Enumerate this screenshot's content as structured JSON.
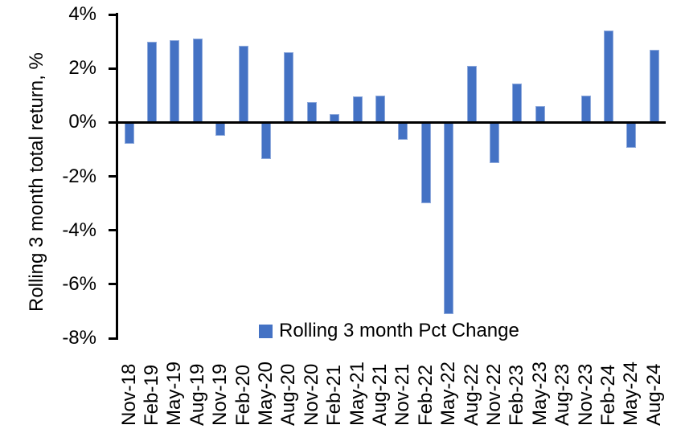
{
  "chart_data": {
    "type": "bar",
    "title": "",
    "xlabel": "",
    "ylabel": "Rolling 3 month total return, %",
    "categories": [
      "Nov-18",
      "Feb-19",
      "May-19",
      "Aug-19",
      "Nov-19",
      "Feb-20",
      "May-20",
      "Aug-20",
      "Nov-20",
      "Feb-21",
      "May-21",
      "Aug-21",
      "Nov-21",
      "Feb-22",
      "May-22",
      "Aug-22",
      "Nov-22",
      "Feb-23",
      "May-23",
      "Aug-23",
      "Nov-23",
      "Feb-24",
      "May-24",
      "Aug-24"
    ],
    "series": [
      {
        "name": "Rolling 3 month Pct Change",
        "values": [
          -0.8,
          3.0,
          3.05,
          3.1,
          -0.5,
          2.85,
          -1.35,
          2.6,
          0.75,
          0.3,
          0.95,
          1.0,
          -0.65,
          -3.0,
          -7.1,
          2.1,
          -1.5,
          1.45,
          0.6,
          0.0,
          1.0,
          3.4,
          -0.95,
          2.7
        ]
      }
    ],
    "ylim": [
      -8,
      4
    ],
    "yticks": [
      {
        "v": 4,
        "label": "4%"
      },
      {
        "v": 2,
        "label": "2%"
      },
      {
        "v": 0,
        "label": "0%"
      },
      {
        "v": -2,
        "label": "-2%"
      },
      {
        "v": -4,
        "label": "-4%"
      },
      {
        "v": -6,
        "label": "-6%"
      },
      {
        "v": -8,
        "label": "-8%"
      }
    ],
    "grid": false,
    "legend_position": "bottom-center-inside",
    "bar_color": "#4472C4",
    "bar_border_color": "#8FAADC",
    "axis_color": "#000000",
    "text_color": "#000000"
  }
}
